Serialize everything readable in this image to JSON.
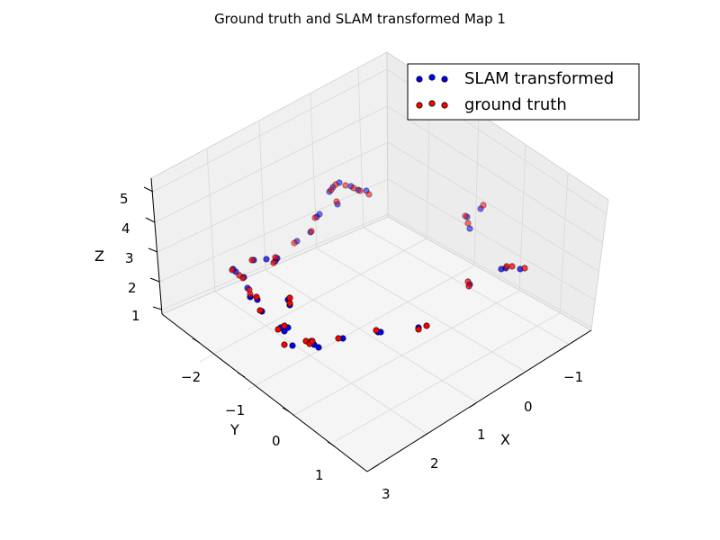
{
  "chart_data": {
    "type": "scatter",
    "projection": "3d",
    "title": "Ground truth and SLAM transformed Map 1",
    "xlabel": "X",
    "ylabel": "Y",
    "zlabel": "Z",
    "x_ticks": [
      "−1",
      "0",
      "1",
      "2",
      "3"
    ],
    "y_ticks": [
      "−2",
      "−1",
      "0",
      "1"
    ],
    "z_ticks": [
      "1",
      "2",
      "3",
      "4",
      "5"
    ],
    "grid": true,
    "legend_position": "top-right",
    "series": [
      {
        "name": "SLAM transformed",
        "color": "#0000ff",
        "points": [
          [
            377,
            203
          ],
          [
            370,
            208
          ],
          [
            390,
            207
          ],
          [
            398,
            211
          ],
          [
            407,
            212
          ],
          [
            366,
            213
          ],
          [
            375,
            227
          ],
          [
            352,
            241
          ],
          [
            355,
            238
          ],
          [
            345,
            258
          ],
          [
            330,
            268
          ],
          [
            308,
            287
          ],
          [
            296,
            288
          ],
          [
            306,
            290
          ],
          [
            282,
            289
          ],
          [
            259,
            299
          ],
          [
            262,
            302
          ],
          [
            271,
            308
          ],
          [
            275,
            320
          ],
          [
            278,
            330
          ],
          [
            286,
            333
          ],
          [
            291,
            346
          ],
          [
            320,
            333
          ],
          [
            322,
            339
          ],
          [
            312,
            364
          ],
          [
            316,
            368
          ],
          [
            320,
            364
          ],
          [
            325,
            384
          ],
          [
            346,
            379
          ],
          [
            349,
            383
          ],
          [
            354,
            386
          ],
          [
            381,
            376
          ],
          [
            420,
            369
          ],
          [
            423,
            369
          ],
          [
            465,
            364
          ],
          [
            519,
            241
          ],
          [
            522,
            254
          ],
          [
            534,
            232
          ],
          [
            522,
            316
          ],
          [
            557,
            299
          ],
          [
            562,
            298
          ],
          [
            578,
            299
          ]
        ]
      },
      {
        "name": "ground truth",
        "color": "#ff0000",
        "points": [
          [
            373,
            205
          ],
          [
            384,
            206
          ],
          [
            393,
            209
          ],
          [
            400,
            212
          ],
          [
            410,
            216
          ],
          [
            368,
            211
          ],
          [
            374,
            224
          ],
          [
            350,
            242
          ],
          [
            346,
            257
          ],
          [
            327,
            270
          ],
          [
            306,
            286
          ],
          [
            304,
            292
          ],
          [
            280,
            289
          ],
          [
            258,
            300
          ],
          [
            266,
            306
          ],
          [
            270,
            309
          ],
          [
            277,
            322
          ],
          [
            278,
            327
          ],
          [
            285,
            330
          ],
          [
            289,
            345
          ],
          [
            322,
            331
          ],
          [
            322,
            337
          ],
          [
            309,
            366
          ],
          [
            316,
            362
          ],
          [
            316,
            383
          ],
          [
            340,
            379
          ],
          [
            344,
            382
          ],
          [
            347,
            379
          ],
          [
            376,
            376
          ],
          [
            418,
            367
          ],
          [
            465,
            366
          ],
          [
            474,
            362
          ],
          [
            517,
            240
          ],
          [
            520,
            248
          ],
          [
            537,
            228
          ],
          [
            520,
            313
          ],
          [
            521,
            318
          ],
          [
            563,
            296
          ],
          [
            569,
            296
          ],
          [
            583,
            298
          ]
        ]
      }
    ]
  }
}
